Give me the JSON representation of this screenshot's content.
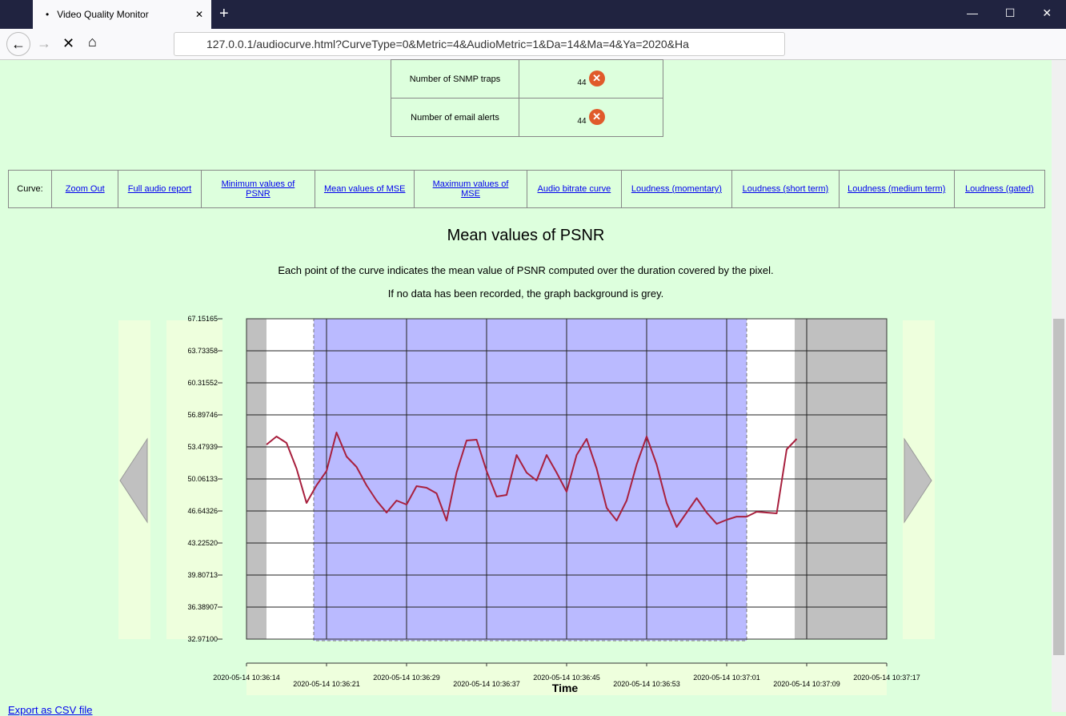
{
  "browser": {
    "tab_title": "Video Quality Monitor",
    "url": "127.0.0.1/audiocurve.html?CurveType=0&Metric=4&AudioMetric=1&Da=14&Ma=4&Ya=2020&Ha"
  },
  "alerts_table": {
    "rows": [
      [
        "Number of SNMP traps",
        "44"
      ],
      [
        "Number of email alerts",
        "44"
      ]
    ]
  },
  "curve_menu": {
    "label": "Curve:",
    "links": [
      "Zoom Out",
      "Full audio report",
      "Minimum values of PSNR",
      "Mean values of MSE",
      "Maximum values of MSE",
      "Audio bitrate curve",
      "Loudness (momentary)",
      "Loudness (short term)",
      "Loudness (medium term)",
      "Loudness (gated)"
    ]
  },
  "chart_data": {
    "type": "line",
    "title": "Mean values of PSNR",
    "notes": [
      "Each point of the curve indicates the mean value of PSNR computed over the duration covered by the pixel.",
      "If no data has been recorded, the graph background is grey."
    ],
    "x_label": "Time",
    "xticks": [
      "2020-05-14 10:36:14",
      "2020-05-14 10:36:21",
      "2020-05-14 10:36:29",
      "2020-05-14 10:36:37",
      "2020-05-14 10:36:45",
      "2020-05-14 10:36:53",
      "2020-05-14 10:37:01",
      "2020-05-14 10:37:09",
      "2020-05-14 10:37:17"
    ],
    "ylim": [
      32.971,
      67.15165
    ],
    "yticks": [
      {
        "value": 32.971,
        "label": "32.97100"
      },
      36.38907,
      39.80713,
      {
        "value": 43.2252,
        "label": "43.22520"
      },
      46.64326,
      50.06133,
      53.47939,
      56.89746,
      60.31552,
      63.73358,
      67.15165
    ],
    "grid": true,
    "series": [
      {
        "color": "#a8203e",
        "values": [
          null,
          null,
          53.73,
          54.59,
          53.91,
          51.17,
          47.5,
          49.38,
          50.91,
          55.02,
          52.45,
          51.34,
          49.38,
          47.75,
          46.47,
          47.75,
          47.33,
          49.29,
          49.12,
          48.52,
          45.62,
          50.74,
          54.16,
          54.25,
          50.91,
          48.18,
          48.35,
          52.62,
          50.74,
          49.89,
          52.62,
          50.74,
          48.69,
          52.62,
          54.33,
          51.17,
          46.98,
          45.62,
          47.75,
          51.6,
          54.59,
          51.6,
          47.5,
          44.93,
          46.47,
          48.01,
          46.47,
          45.27,
          45.7,
          46.04,
          46.04,
          46.56,
          46.47,
          46.39,
          53.22,
          54.33,
          null,
          null,
          null,
          null,
          null,
          null,
          null,
          null,
          null
        ]
      }
    ]
  },
  "footer_link": "Export as CSV file"
}
